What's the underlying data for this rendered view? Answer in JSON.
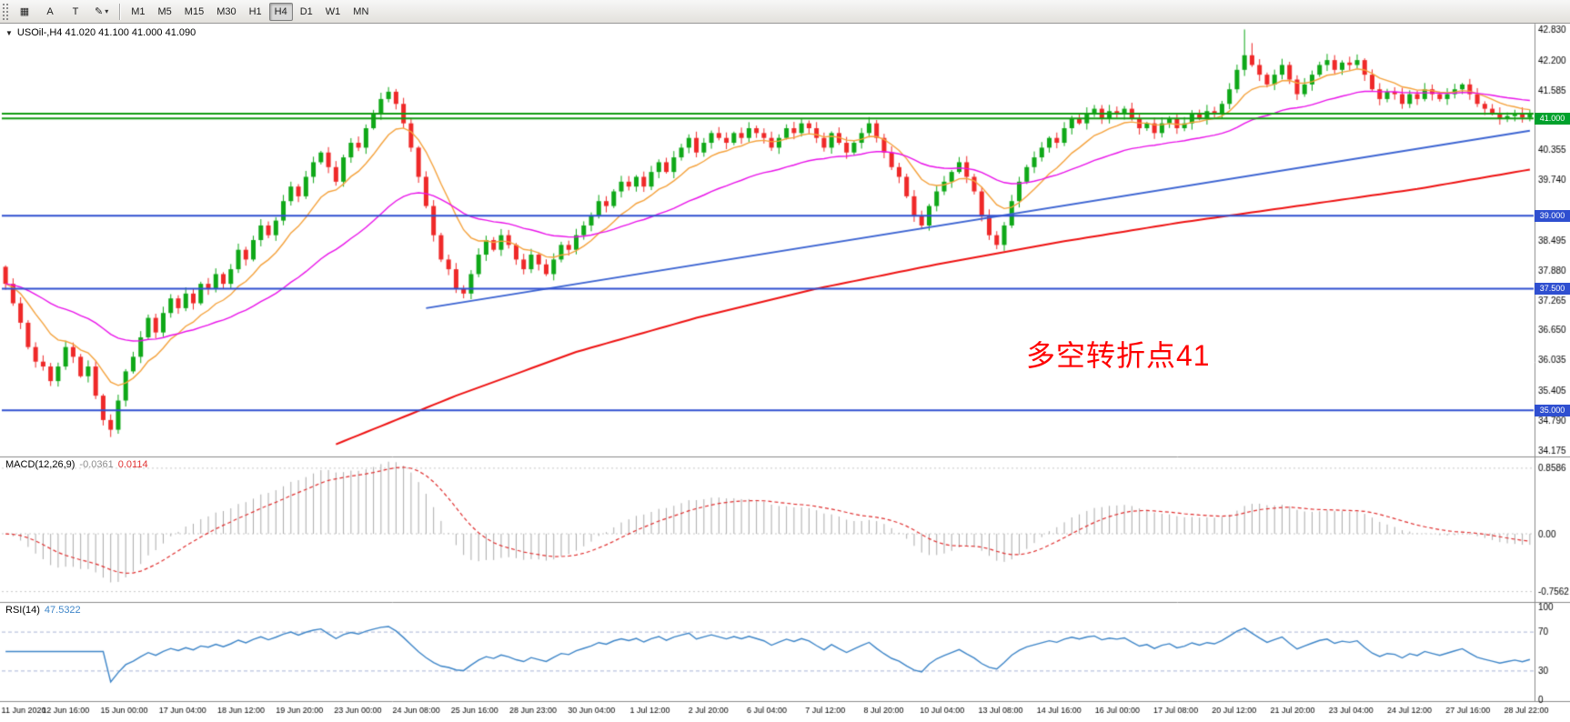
{
  "toolbar": {
    "icon_buttons": [
      {
        "name": "chart-grid-icon",
        "glyph": "▦"
      }
    ],
    "tool_buttons": [
      "A",
      "T"
    ],
    "draw_dropdown": {
      "glyph": "✎",
      "caret": "▾"
    },
    "timeframes": [
      "M1",
      "M5",
      "M15",
      "M30",
      "H1",
      "H4",
      "D1",
      "W1",
      "MN"
    ],
    "active_timeframe": "H4"
  },
  "chart_data": {
    "type": "candlestick",
    "symbol": "USOil-",
    "timeframe": "H4",
    "title": "USOil-,H4 41.020 41.100 41.000 41.090",
    "ohlc_display": {
      "open": "41.020",
      "high": "41.100",
      "low": "41.000",
      "close": "41.090"
    },
    "price_range": {
      "max": 42.95,
      "min": 34.05
    },
    "first_open": 37.95,
    "closes": [
      37.6,
      37.2,
      36.8,
      36.3,
      36.0,
      35.9,
      35.6,
      35.9,
      36.3,
      36.1,
      35.7,
      35.9,
      35.3,
      34.8,
      34.6,
      35.2,
      35.8,
      36.1,
      36.5,
      36.9,
      36.6,
      37.0,
      37.3,
      37.1,
      37.4,
      37.2,
      37.6,
      37.5,
      37.8,
      37.6,
      37.9,
      38.3,
      38.1,
      38.5,
      38.8,
      38.6,
      38.9,
      39.3,
      39.6,
      39.4,
      39.8,
      40.1,
      40.3,
      40.0,
      39.7,
      40.2,
      40.5,
      40.4,
      40.8,
      41.1,
      41.4,
      41.55,
      41.3,
      40.9,
      40.4,
      39.8,
      39.2,
      38.6,
      38.1,
      37.9,
      37.5,
      37.4,
      37.8,
      38.2,
      38.5,
      38.3,
      38.6,
      38.4,
      38.1,
      37.9,
      38.2,
      38.0,
      37.8,
      38.1,
      38.4,
      38.3,
      38.6,
      38.8,
      39.0,
      39.3,
      39.2,
      39.5,
      39.7,
      39.6,
      39.8,
      39.6,
      39.9,
      40.1,
      39.9,
      40.2,
      40.4,
      40.6,
      40.3,
      40.5,
      40.7,
      40.6,
      40.5,
      40.7,
      40.6,
      40.8,
      40.7,
      40.6,
      40.4,
      40.6,
      40.8,
      40.7,
      40.9,
      40.8,
      40.6,
      40.4,
      40.7,
      40.5,
      40.3,
      40.5,
      40.7,
      40.9,
      40.6,
      40.3,
      40.0,
      39.8,
      39.4,
      39.0,
      38.8,
      39.2,
      39.5,
      39.7,
      39.9,
      40.1,
      39.8,
      39.5,
      39.0,
      38.6,
      38.4,
      38.8,
      39.3,
      39.7,
      40.0,
      40.2,
      40.4,
      40.6,
      40.5,
      40.8,
      41.0,
      40.9,
      41.1,
      41.2,
      41.0,
      41.15,
      41.1,
      41.2,
      41.0,
      40.8,
      40.9,
      40.7,
      40.9,
      41.0,
      40.8,
      40.9,
      41.1,
      41.0,
      41.15,
      41.1,
      41.3,
      41.6,
      42.0,
      42.3,
      42.1,
      41.9,
      41.7,
      41.9,
      42.1,
      41.8,
      41.5,
      41.7,
      41.9,
      42.1,
      42.2,
      42.0,
      42.15,
      42.1,
      42.2,
      41.9,
      41.6,
      41.4,
      41.55,
      41.5,
      41.3,
      41.5,
      41.4,
      41.6,
      41.5,
      41.4,
      41.5,
      41.6,
      41.7,
      41.5,
      41.3,
      41.2,
      41.1,
      41.0,
      41.05,
      41.1,
      41.02,
      41.09
    ],
    "wick_overrides": {
      "14": {
        "low": 34.45
      },
      "165": {
        "high": 42.83
      },
      "166": {
        "high": 42.55
      }
    },
    "price_axis_labels": [
      42.83,
      42.2,
      41.585,
      40.355,
      39.74,
      38.495,
      37.88,
      37.265,
      36.65,
      36.035,
      35.405,
      34.79,
      34.175
    ],
    "hlines": [
      {
        "price": 41.1,
        "color": "#129b12",
        "width": 2
      },
      {
        "price": 41.0,
        "color": "#129b12",
        "width": 2,
        "badge": "41.000",
        "badge_color": "#00a12c"
      },
      {
        "price": 39.0,
        "color": "#2f4fd0",
        "width": 2,
        "badge": "39.000",
        "badge_color": "#2f4fd0"
      },
      {
        "price": 37.5,
        "color": "#2f4fd0",
        "width": 2,
        "badge": "37.500",
        "badge_color": "#2f4fd0"
      },
      {
        "price": 35.0,
        "color": "#2f4fd0",
        "width": 2,
        "badge": "35.000",
        "badge_color": "#2f4fd0"
      }
    ],
    "moving_averages": [
      {
        "name": "fast-ma",
        "period": 10,
        "color": "#f5a23c"
      },
      {
        "name": "medium-ma",
        "period": 34,
        "color": "#e912e9"
      }
    ],
    "slow_ma_red": {
      "color": "#ee1111",
      "anchors": [
        [
          44,
          34.3
        ],
        [
          60,
          35.3
        ],
        [
          76,
          36.2
        ],
        [
          92,
          36.9
        ],
        [
          108,
          37.5
        ],
        [
          124,
          38.0
        ],
        [
          140,
          38.45
        ],
        [
          156,
          38.85
        ],
        [
          172,
          39.2
        ],
        [
          188,
          39.55
        ],
        [
          203,
          39.95
        ]
      ]
    },
    "trendline_blue": {
      "color": "#3c64d2",
      "anchors": [
        [
          56,
          37.1
        ],
        [
          203,
          40.75
        ]
      ]
    },
    "annotation": {
      "text": "多空转折点41",
      "color": "#fe0000"
    },
    "macd": {
      "label": "MACD(12,26,9)",
      "value1": "-0.0361",
      "value2": "0.0114",
      "fast": 12,
      "slow": 26,
      "signal": 9,
      "axis_labels": [
        "0.8586",
        "0.00",
        "-0.7562"
      ],
      "axis_values": [
        0.8586,
        0,
        -0.7562
      ],
      "range": {
        "max": 1.0,
        "min": -0.88
      },
      "hist_color": "#ababab",
      "signal_color": "#e03030",
      "value1_color": "#8c8c8c"
    },
    "rsi": {
      "label": "RSI(14)",
      "value": "47.5322",
      "period": 14,
      "axis_labels": [
        "100",
        "70",
        "30",
        "0"
      ],
      "axis_values": [
        100,
        70,
        30,
        0
      ],
      "levels": [
        70,
        30
      ],
      "range": {
        "max": 100,
        "min": 0
      },
      "color": "#3d85c8",
      "level_color": "#a8b4d6"
    },
    "time_axis_labels": [
      "11 Jun 2020",
      "12 Jun 16:00",
      "15 Jun 00:00",
      "17 Jun 04:00",
      "18 Jun 12:00",
      "19 Jun 20:00",
      "23 Jun 00:00",
      "24 Jun 08:00",
      "25 Jun 16:00",
      "28 Jun 23:00",
      "30 Jun 04:00",
      "1 Jul 12:00",
      "2 Jul 20:00",
      "6 Jul 04:00",
      "7 Jul 12:00",
      "8 Jul 20:00",
      "10 Jul 04:00",
      "13 Jul 08:00",
      "14 Jul 16:00",
      "16 Jul 00:00",
      "17 Jul 08:00",
      "20 Jul 12:00",
      "21 Jul 20:00",
      "23 Jul 04:00",
      "24 Jul 12:00",
      "27 Jul 16:00",
      "28 Jul 22:00"
    ],
    "colors": {
      "up": "#0fa818",
      "down": "#ef2929",
      "background": "#ffffff",
      "axis_text": "#000000"
    }
  }
}
